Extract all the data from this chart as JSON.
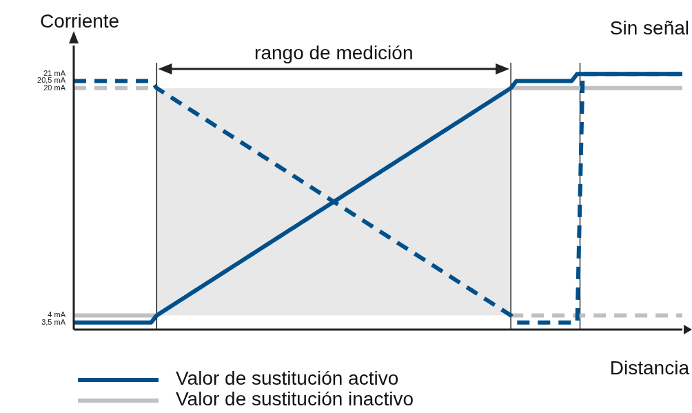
{
  "chart_data": {
    "type": "line",
    "ylabel": "Corriente",
    "xlabel": "Distancia",
    "categories": [
      null,
      null,
      null,
      null,
      null,
      null,
      null,
      null,
      null,
      null,
      null,
      null,
      null,
      null,
      null,
      null,
      null,
      null,
      null,
      null,
      null,
      null,
      null,
      null,
      null,
      null,
      null,
      null,
      null,
      null,
      null,
      null,
      null,
      null,
      null,
      null,
      null,
      null,
      null,
      null,
      null,
      null,
      null,
      null,
      null,
      null,
      null,
      null,
      null,
      null,
      null,
      null,
      null,
      null,
      null,
      null,
      null,
      null,
      null,
      null,
      null,
      null,
      null,
      null,
      null,
      null,
      null,
      null,
      null,
      null,
      null,
      null,
      null,
      null,
      null,
      null,
      null,
      null,
      null,
      null,
      null,
      null,
      null,
      null,
      null,
      null,
      null,
      null,
      null,
      null,
      null,
      null,
      null,
      null,
      null,
      null,
      null,
      null,
      null,
      null,
      null,
      null,
      null,
      null,
      null,
      null,
      null,
      null,
      null,
      null,
      null
    ],
    "ylim": [
      3,
      23
    ],
    "yticks": [
      {
        "value": 3.5,
        "label": "3,5 mA"
      },
      {
        "value": 4,
        "label": "4 mA"
      },
      {
        "value": 20,
        "label": "20 mA"
      },
      {
        "value": 20.5,
        "label": "20,5 mA"
      },
      {
        "value": 21,
        "label": "21 mA"
      }
    ],
    "tick_labels": "y",
    "legend": "bottom",
    "series": [
      {
        "name": "Valor de sustitución activo",
        "color": "#00508c",
        "line_style": "solid",
        "values": [
          3.5,
          3.5,
          3.5,
          3.5,
          3.5,
          3.5,
          3.5,
          3.5,
          3.5,
          3.5,
          3.5,
          3.5,
          3.5,
          3.5,
          3.5,
          4,
          4.25,
          4.5,
          4.75,
          5,
          5.25,
          5.5,
          5.75,
          6,
          6.25,
          6.5,
          6.75,
          7,
          7.25,
          7.5,
          7.75,
          8,
          8.25,
          8.5,
          8.75,
          9,
          9.25,
          9.5,
          9.75,
          10,
          10.25,
          10.5,
          10.75,
          11,
          11.25,
          11.5,
          11.75,
          12,
          12.25,
          12.5,
          12.75,
          13,
          13.25,
          13.5,
          13.75,
          14,
          14.25,
          14.5,
          14.75,
          15,
          15.25,
          15.5,
          15.75,
          16,
          16.25,
          16.5,
          16.75,
          17,
          17.25,
          17.5,
          17.75,
          18,
          18.25,
          18.5,
          18.75,
          19,
          19.25,
          19.5,
          19.75,
          20,
          20.5,
          20.5,
          20.5,
          20.5,
          20.5,
          20.5,
          20.5,
          20.5,
          20.5,
          20.5,
          20.5,
          21,
          21,
          21,
          21,
          21,
          21,
          21,
          21,
          21,
          21,
          21,
          21,
          21,
          21,
          21,
          21,
          21,
          21,
          21,
          21
        ]
      },
      {
        "color": "#00508c",
        "line_style": "dashed",
        "values": [
          20.5,
          20.5,
          20.5,
          20.5,
          20.5,
          20.5,
          20.5,
          20.5,
          20.5,
          20.5,
          20.5,
          20.5,
          20.5,
          20.5,
          20.5,
          20,
          19.75,
          19.5,
          19.25,
          19,
          18.75,
          18.5,
          18.25,
          18,
          17.75,
          17.5,
          17.25,
          17,
          16.75,
          16.5,
          16.25,
          16,
          15.75,
          15.5,
          15.25,
          15,
          14.75,
          14.5,
          14.25,
          14,
          13.75,
          13.5,
          13.25,
          13,
          12.75,
          12.5,
          12.25,
          12,
          11.75,
          11.5,
          11.25,
          11,
          10.75,
          10.5,
          10.25,
          10,
          9.75,
          9.5,
          9.25,
          9,
          8.75,
          8.5,
          8.25,
          8,
          7.75,
          7.5,
          7.25,
          7,
          6.75,
          6.5,
          6.25,
          6,
          5.75,
          5.5,
          5.25,
          5,
          4.75,
          4.5,
          4.25,
          4,
          3.5,
          3.5,
          3.5,
          3.5,
          3.5,
          3.5,
          3.5,
          3.5,
          3.5,
          3.5,
          3.5,
          3.5,
          21,
          21,
          21,
          21,
          21,
          21,
          21,
          21,
          21,
          21,
          21,
          21,
          21,
          21,
          21,
          21,
          21,
          21,
          21
        ]
      },
      {
        "name": "Valor de sustitución inactivo",
        "color": "#c0c0c0",
        "line_style": "solid",
        "values": [
          4,
          4,
          4,
          4,
          4,
          4,
          4,
          4,
          4,
          4,
          4,
          4,
          4,
          4,
          4,
          4,
          null,
          null,
          null,
          null,
          null,
          null,
          null,
          null,
          null,
          null,
          null,
          null,
          null,
          null,
          null,
          null,
          null,
          null,
          null,
          null,
          null,
          null,
          null,
          null,
          null,
          null,
          null,
          null,
          null,
          null,
          null,
          null,
          null,
          null,
          null,
          null,
          null,
          null,
          null,
          null,
          null,
          null,
          null,
          null,
          null,
          null,
          null,
          null,
          null,
          null,
          null,
          null,
          null,
          null,
          null,
          null,
          null,
          null,
          null,
          null,
          null,
          null,
          null,
          20,
          20,
          20,
          20,
          20,
          20,
          20,
          20,
          20,
          20,
          20,
          20,
          20,
          20,
          20,
          20,
          20,
          20,
          20,
          20,
          20,
          20,
          20,
          20,
          20,
          20,
          20,
          20,
          20,
          20,
          20,
          20
        ]
      },
      {
        "color": "#c0c0c0",
        "line_style": "dashed",
        "values": [
          20,
          20,
          20,
          20,
          20,
          20,
          20,
          20,
          20,
          20,
          20,
          20,
          20,
          20,
          20,
          20,
          null,
          null,
          null,
          null,
          null,
          null,
          null,
          null,
          null,
          null,
          null,
          null,
          null,
          null,
          null,
          null,
          null,
          null,
          null,
          null,
          null,
          null,
          null,
          null,
          null,
          null,
          null,
          null,
          null,
          null,
          null,
          null,
          null,
          null,
          null,
          null,
          null,
          null,
          null,
          null,
          null,
          null,
          null,
          null,
          null,
          null,
          null,
          null,
          null,
          null,
          null,
          null,
          null,
          null,
          null,
          null,
          null,
          null,
          null,
          null,
          null,
          null,
          null,
          4,
          4,
          4,
          4,
          4,
          4,
          4,
          4,
          4,
          4,
          4,
          4,
          4,
          4,
          4,
          4,
          4,
          4,
          4,
          4,
          4,
          4,
          4,
          4,
          4,
          4,
          4,
          4,
          4,
          4,
          4,
          4
        ]
      }
    ],
    "bands": [
      {
        "axis": "y",
        "from": 4,
        "to": 20,
        "color": "#e8e8e8"
      }
    ],
    "annotations": [
      "rango de medición",
      "Sin señal"
    ]
  }
}
